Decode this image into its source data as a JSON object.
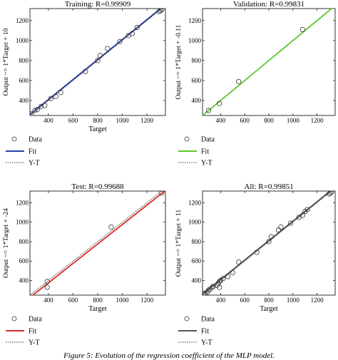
{
  "chart_data": [
    {
      "type": "scatter",
      "title": "Training: R=0.99909",
      "xlabel": "Target",
      "ylabel": "Output ~= 1*Target + 10",
      "xlim": [
        250,
        1350
      ],
      "ylim": [
        250,
        1320
      ],
      "xticks": [
        400,
        600,
        800,
        1000,
        1200
      ],
      "yticks": [
        400,
        600,
        800,
        1000,
        1200
      ],
      "fit_color": "#2a3fa0",
      "fit": {
        "slope": 1.0,
        "intercept": 10
      },
      "points": {
        "x": [
          260,
          290,
          310,
          340,
          370,
          420,
          460,
          500,
          700,
          800,
          820,
          880,
          980,
          1050,
          1080,
          1120,
          1300,
          1310,
          1320
        ],
        "y": [
          265,
          300,
          310,
          340,
          350,
          420,
          440,
          480,
          690,
          800,
          850,
          920,
          990,
          1050,
          1070,
          1130,
          1290,
          1300,
          1310
        ]
      },
      "legend": {
        "placement": "below",
        "entries": [
          "Data",
          "Fit",
          "Y-T"
        ]
      }
    },
    {
      "type": "scatter",
      "title": "Validation: R=0.99831",
      "xlabel": "",
      "ylabel": "Output ~= 1*Target + -0.11",
      "xlim": [
        250,
        1350
      ],
      "ylim": [
        250,
        1320
      ],
      "xticks": [
        400,
        600,
        800,
        1000,
        1200
      ],
      "yticks": [
        400,
        600,
        800,
        1000,
        1200
      ],
      "fit_color": "#5cc82f",
      "fit": {
        "slope": 1.0,
        "intercept": -0.11
      },
      "points": {
        "x": [
          300,
          390,
          550,
          1080
        ],
        "y": [
          300,
          370,
          590,
          1110
        ]
      },
      "legend": {
        "placement": "below",
        "entries": [
          "Data",
          "Fit",
          "Y-T"
        ]
      }
    },
    {
      "type": "scatter",
      "title": "Test: R=0.99688",
      "xlabel": "Target",
      "ylabel": "Output ~= 1*Target + -24",
      "xlim": [
        250,
        1350
      ],
      "ylim": [
        250,
        1320
      ],
      "xticks": [
        400,
        600,
        800,
        1000,
        1200
      ],
      "yticks": [
        400,
        600,
        800,
        1000,
        1200
      ],
      "fit_color": "#d62b2b",
      "fit": {
        "slope": 1.0,
        "intercept": -24
      },
      "points": {
        "x": [
          390,
          390,
          910,
          1320
        ],
        "y": [
          330,
          390,
          950,
          1300
        ]
      },
      "legend": {
        "placement": "below",
        "entries": [
          "Data",
          "Fit",
          "Y-T"
        ]
      }
    },
    {
      "type": "scatter",
      "title": "All: R=0.99851",
      "xlabel": "Target",
      "ylabel": "Output ~= 1*Target + 11",
      "xlim": [
        250,
        1350
      ],
      "ylim": [
        250,
        1320
      ],
      "xticks": [
        400,
        600,
        800,
        1000,
        1200
      ],
      "yticks": [
        400,
        600,
        800,
        1000,
        1200
      ],
      "fit_color": "#555555",
      "fit": {
        "slope": 1.0,
        "intercept": 11
      },
      "points": {
        "x": [
          260,
          270,
          290,
          300,
          310,
          330,
          340,
          370,
          380,
          390,
          390,
          400,
          420,
          460,
          500,
          550,
          700,
          800,
          820,
          880,
          900,
          980,
          1050,
          1080,
          1100,
          1120,
          1300,
          1310,
          1320
        ],
        "y": [
          265,
          270,
          280,
          300,
          310,
          330,
          340,
          350,
          370,
          330,
          390,
          400,
          420,
          440,
          480,
          590,
          690,
          800,
          850,
          920,
          950,
          990,
          1050,
          1070,
          1110,
          1130,
          1290,
          1300,
          1310
        ]
      },
      "legend": {
        "placement": "below",
        "entries": [
          "Data",
          "Fit",
          "Y-T"
        ]
      }
    }
  ],
  "caption": "Figure 5: Evolution of the regression coefficient of the MLP model."
}
